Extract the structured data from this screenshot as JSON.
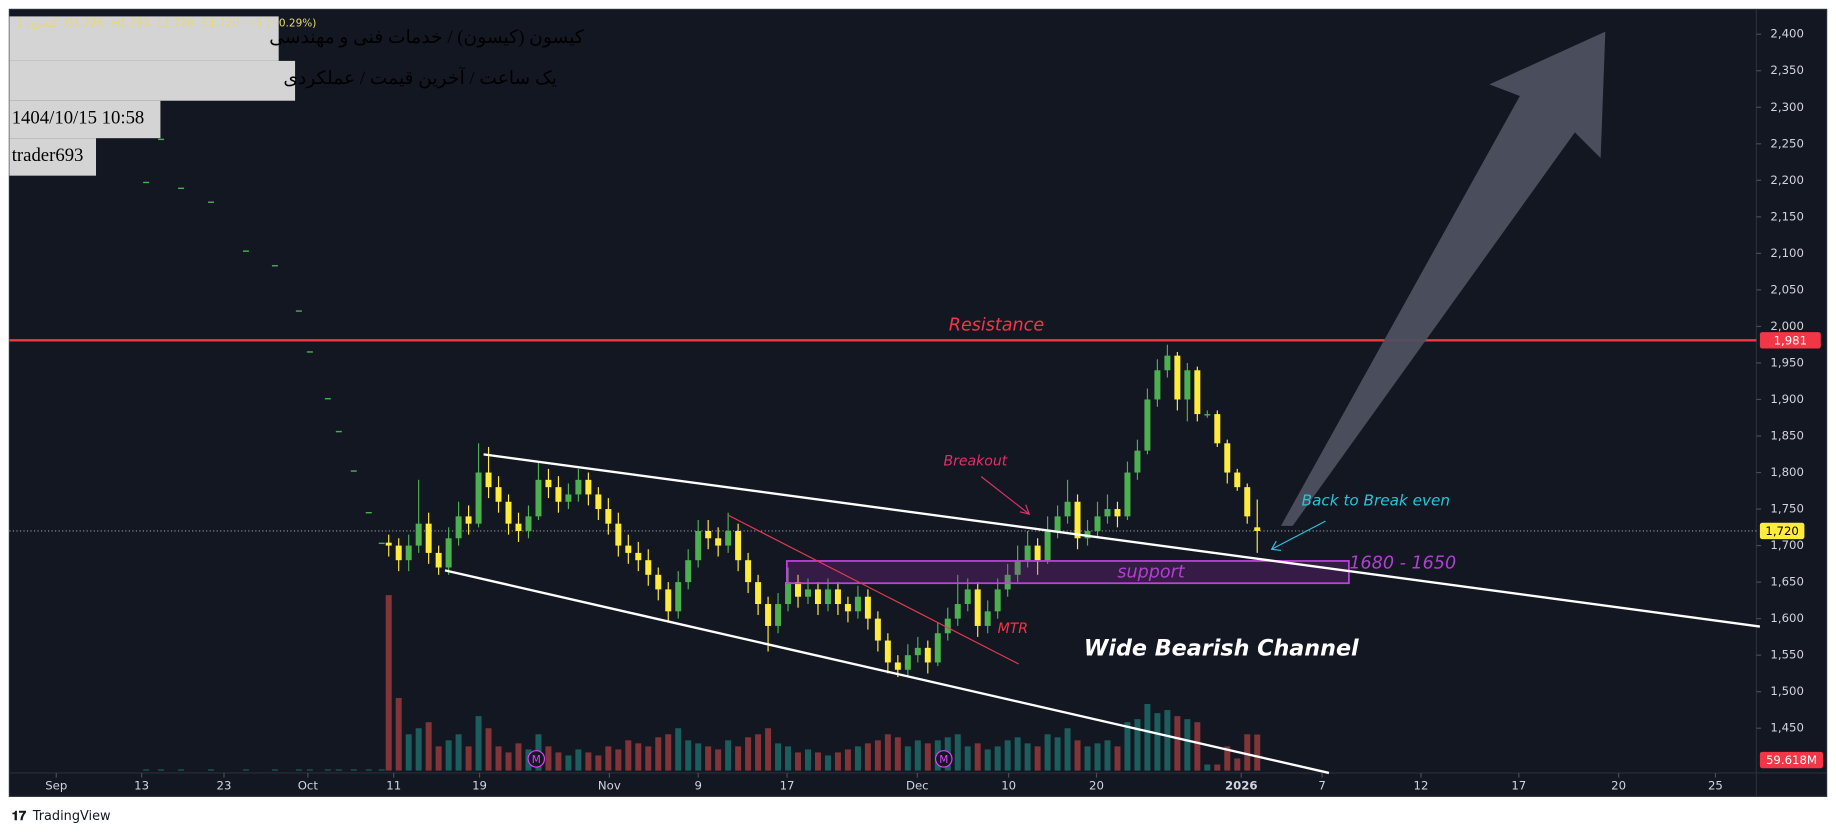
{
  "chart_data": {
    "type": "candlestick",
    "header": {
      "name": "کیسون (کیسون) / خدمات فنی و مهندسی",
      "info": "یک ساعت / آخرین قیمت / عملکردی",
      "datetime": "1404/10/15 10:58",
      "author": "trader693"
    },
    "legend": {
      "symbol": "1 کیسون",
      "open": "O1,725",
      "high": "H1,763",
      "low": "L1,720",
      "close": "C1,720",
      "change": "−5 (−0.29%)"
    },
    "annotations": {
      "resistance": "Resistance",
      "breakout": "Breakout",
      "break_even": "Back to Break even",
      "zone": "1680 - 1650",
      "support": "support",
      "mtr": "MTR",
      "channel": "Wide Bearish Channel"
    },
    "event_marker": "M",
    "brand": "TradingView",
    "volume_label": "59.618M",
    "up_color": "#4caf50",
    "down_color": "#ffeb3b",
    "volume_up_color": "#26a69a",
    "volume_down_color": "#ef5350",
    "resistance_line": {
      "value": 1981,
      "label": "1,981",
      "color": "#f23645"
    },
    "last_price": {
      "value": 1720,
      "label": "1,720",
      "color": "#ffeb3b"
    },
    "xlim": [
      0,
      175
    ],
    "ylim": [
      1392,
      2434
    ],
    "volume_lim": [
      0,
      300
    ],
    "grid": false,
    "xticks": [
      {
        "value": 4.7,
        "label": "Sep"
      },
      {
        "value": 13.25,
        "label": "13"
      },
      {
        "value": 21.5,
        "label": "23"
      },
      {
        "value": 29.9,
        "label": "Oct"
      },
      {
        "value": 38.5,
        "label": "11"
      },
      {
        "value": 47.1,
        "label": "19"
      },
      {
        "value": 60.1,
        "label": "Nov"
      },
      {
        "value": 69,
        "label": "9"
      },
      {
        "value": 77.9,
        "label": "17"
      },
      {
        "value": 90.95,
        "label": "Dec"
      },
      {
        "value": 100.1,
        "label": "10"
      },
      {
        "value": 108.9,
        "label": "20"
      },
      {
        "value": 123.4,
        "label": "2026"
      },
      {
        "value": 131.5,
        "label": "7"
      },
      {
        "value": 141.4,
        "label": "12"
      },
      {
        "value": 151.2,
        "label": "17"
      },
      {
        "value": 161.2,
        "label": "20"
      },
      {
        "value": 170.9,
        "label": "25"
      }
    ],
    "yticks": [
      {
        "value": 1450,
        "label": "1,450"
      },
      {
        "value": 1500,
        "label": "1,500"
      },
      {
        "value": 1550,
        "label": "1,550"
      },
      {
        "value": 1600,
        "label": "1,600"
      },
      {
        "value": 1650,
        "label": "1,650"
      },
      {
        "value": 1700,
        "label": "1,700"
      },
      {
        "value": 1750,
        "label": "1,750"
      },
      {
        "value": 1800,
        "label": "1,800"
      },
      {
        "value": 1850,
        "label": "1,850"
      },
      {
        "value": 1900,
        "label": "1,900"
      },
      {
        "value": 1950,
        "label": "1,950"
      },
      {
        "value": 2000,
        "label": "2,000"
      },
      {
        "value": 2050,
        "label": "2,050"
      },
      {
        "value": 2100,
        "label": "2,100"
      },
      {
        "value": 2150,
        "label": "2,150"
      },
      {
        "value": 2200,
        "label": "2,200"
      },
      {
        "value": 2250,
        "label": "2,250"
      },
      {
        "value": 2300,
        "label": "2,300"
      },
      {
        "value": 2350,
        "label": "2,350"
      },
      {
        "value": 2400,
        "label": "2,400"
      }
    ],
    "x": [
      13.7,
      15.2,
      17.2,
      20.2,
      23.7,
      26.6,
      29,
      30.1,
      31.9,
      33,
      34.5,
      36,
      37.3,
      38,
      39,
      40,
      41,
      42,
      43,
      44,
      45,
      46,
      47,
      48,
      49,
      50,
      51,
      52,
      53,
      54,
      55,
      56,
      57,
      58,
      59,
      60,
      61,
      62,
      63,
      64,
      65,
      66,
      67,
      68,
      69,
      70,
      71,
      72,
      73,
      74,
      75,
      76,
      77,
      78,
      79,
      80,
      81,
      82,
      83,
      84,
      85,
      86,
      87,
      88,
      89,
      90,
      91,
      92,
      93,
      94,
      95,
      96,
      97,
      98,
      99,
      100,
      101,
      102,
      103,
      104,
      105,
      106,
      107,
      108,
      109,
      110,
      111,
      112,
      113,
      114,
      115,
      116,
      117,
      118,
      119,
      120,
      121,
      122,
      123,
      124,
      125
    ],
    "open": [
      2198,
      2257,
      2190,
      2171,
      2104,
      2084,
      2022,
      1966,
      1902,
      1857,
      1803,
      1746,
      1704,
      1704,
      1700,
      1680,
      1700,
      1730,
      1690,
      1670,
      1710,
      1740,
      1730,
      1800,
      1780,
      1760,
      1730,
      1720,
      1740,
      1790,
      1780,
      1760,
      1770,
      1790,
      1770,
      1750,
      1730,
      1700,
      1690,
      1680,
      1660,
      1640,
      1610,
      1650,
      1680,
      1720,
      1710,
      1700,
      1720,
      1680,
      1650,
      1620,
      1590,
      1620,
      1650,
      1630,
      1640,
      1620,
      1640,
      1620,
      1610,
      1630,
      1600,
      1570,
      1540,
      1530,
      1550,
      1560,
      1540,
      1580,
      1600,
      1620,
      1640,
      1590,
      1610,
      1640,
      1660,
      1680,
      1700,
      1680,
      1720,
      1740,
      1760,
      1710,
      1720,
      1740,
      1750,
      1740,
      1800,
      1830,
      1900,
      1940,
      1960,
      1900,
      1940,
      1880,
      1880,
      1840,
      1800,
      1780,
      1725
    ],
    "high": [
      2198,
      2257,
      2190,
      2171,
      2104,
      2084,
      2022,
      1966,
      1902,
      1857,
      1803,
      1746,
      1704,
      1715,
      1710,
      1715,
      1790,
      1745,
      1700,
      1725,
      1760,
      1755,
      1840,
      1835,
      1795,
      1770,
      1745,
      1755,
      1815,
      1805,
      1795,
      1785,
      1805,
      1800,
      1780,
      1765,
      1745,
      1715,
      1705,
      1695,
      1670,
      1650,
      1665,
      1695,
      1735,
      1735,
      1725,
      1745,
      1730,
      1690,
      1660,
      1630,
      1635,
      1670,
      1660,
      1655,
      1650,
      1655,
      1650,
      1630,
      1645,
      1640,
      1610,
      1580,
      1550,
      1565,
      1575,
      1570,
      1595,
      1615,
      1660,
      1655,
      1650,
      1625,
      1655,
      1675,
      1700,
      1720,
      1710,
      1740,
      1755,
      1790,
      1770,
      1735,
      1760,
      1770,
      1760,
      1815,
      1845,
      1915,
      1955,
      1975,
      1965,
      1950,
      1945,
      1885,
      1885,
      1845,
      1805,
      1785,
      1763
    ],
    "low": [
      2198,
      2257,
      2190,
      2171,
      2104,
      2084,
      2022,
      1966,
      1902,
      1857,
      1803,
      1746,
      1704,
      1685,
      1665,
      1665,
      1690,
      1675,
      1660,
      1660,
      1700,
      1715,
      1725,
      1765,
      1745,
      1715,
      1705,
      1710,
      1735,
      1765,
      1745,
      1750,
      1760,
      1755,
      1735,
      1715,
      1685,
      1675,
      1665,
      1645,
      1625,
      1595,
      1600,
      1640,
      1670,
      1695,
      1685,
      1690,
      1665,
      1635,
      1605,
      1555,
      1580,
      1610,
      1615,
      1620,
      1605,
      1610,
      1605,
      1595,
      1600,
      1585,
      1555,
      1525,
      1520,
      1520,
      1540,
      1525,
      1535,
      1570,
      1590,
      1610,
      1575,
      1580,
      1600,
      1630,
      1650,
      1670,
      1660,
      1675,
      1710,
      1730,
      1695,
      1700,
      1710,
      1730,
      1725,
      1735,
      1790,
      1825,
      1890,
      1930,
      1885,
      1870,
      1870,
      1875,
      1835,
      1785,
      1775,
      1730,
      1690
    ],
    "close": [
      2198,
      2257,
      2190,
      2171,
      2104,
      2084,
      2022,
      1966,
      1902,
      1857,
      1803,
      1746,
      1704,
      1700,
      1680,
      1700,
      1730,
      1690,
      1670,
      1710,
      1740,
      1730,
      1800,
      1780,
      1760,
      1730,
      1720,
      1740,
      1790,
      1780,
      1760,
      1770,
      1790,
      1770,
      1750,
      1730,
      1700,
      1690,
      1680,
      1660,
      1640,
      1610,
      1650,
      1680,
      1720,
      1710,
      1700,
      1720,
      1680,
      1650,
      1620,
      1590,
      1620,
      1650,
      1630,
      1640,
      1620,
      1640,
      1620,
      1610,
      1630,
      1600,
      1570,
      1540,
      1530,
      1550,
      1560,
      1540,
      1580,
      1600,
      1620,
      1640,
      1590,
      1610,
      1640,
      1660,
      1680,
      1700,
      1680,
      1720,
      1740,
      1760,
      1710,
      1720,
      1740,
      1750,
      1740,
      1800,
      1830,
      1900,
      1940,
      1960,
      1900,
      1940,
      1880,
      1880,
      1840,
      1800,
      1780,
      1740,
      1720
    ],
    "volume": [
      2,
      2,
      2,
      2,
      2,
      2,
      2,
      2,
      2,
      2,
      2,
      2,
      2,
      290,
      120,
      60,
      70,
      80,
      40,
      50,
      60,
      40,
      90,
      70,
      40,
      30,
      45,
      35,
      60,
      40,
      30,
      25,
      35,
      30,
      25,
      40,
      35,
      50,
      45,
      40,
      55,
      60,
      70,
      50,
      45,
      40,
      35,
      50,
      40,
      55,
      60,
      70,
      45,
      40,
      30,
      35,
      30,
      25,
      30,
      35,
      40,
      45,
      50,
      60,
      55,
      40,
      50,
      45,
      50,
      55,
      60,
      40,
      45,
      35,
      40,
      50,
      55,
      45,
      40,
      60,
      55,
      70,
      50,
      40,
      45,
      50,
      40,
      80,
      85,
      110,
      95,
      100,
      90,
      85,
      80,
      10,
      10,
      40,
      20,
      60,
      59.618
    ]
  }
}
